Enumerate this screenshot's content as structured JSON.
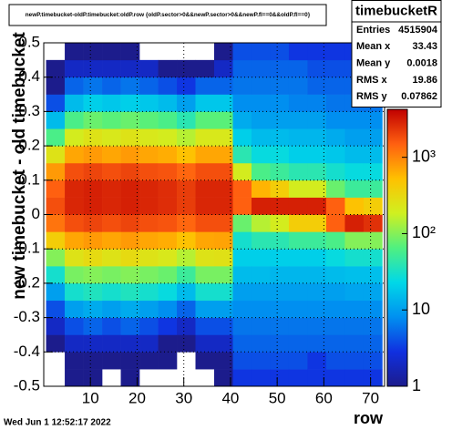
{
  "chart_data": {
    "type": "heatmap",
    "title": "newP.timebucket-oldP.timebucket:oldP.row {oldP.sector>0&&newP.sector>0&&newP.fl==0&&oldP.fl==0}",
    "x_label": "row",
    "y_label": "new timebucket - old timebucket",
    "date": "Wed Jun  1 12:52:17 2022",
    "stats": {
      "name": "timebucketR",
      "rows": [
        {
          "label": "Entries",
          "value": 4515904
        },
        {
          "label": "Mean x",
          "value": 33.43
        },
        {
          "label": "Mean y",
          "value": 0.0018
        },
        {
          "label": "RMS x",
          "value": 19.86
        },
        {
          "label": "RMS y",
          "value": 0.07862
        }
      ]
    },
    "xlim": [
      0,
      73
    ],
    "xticks": [
      10,
      20,
      30,
      40,
      50,
      60,
      70
    ],
    "ylim": [
      -0.5,
      0.5
    ],
    "yticks": [
      -0.5,
      -0.4,
      -0.3,
      -0.2,
      -0.1,
      0,
      0.1,
      0.2,
      0.3,
      0.4,
      0.5
    ],
    "zlim": [
      1,
      4250
    ],
    "zlog": true,
    "zticks": [
      1,
      10,
      {
        "value": 100,
        "label": "10²"
      },
      {
        "value": 1000,
        "label": "10³"
      }
    ],
    "grid": true,
    "palette": [
      "#1c1c8c",
      "#1030e0",
      "#0090f0",
      "#00d8e8",
      "#50f080",
      "#d0f020",
      "#ffc000",
      "#ff6010",
      "#c00000"
    ],
    "xbins": [
      0.5,
      4.5,
      8.5,
      12.5,
      16.5,
      20.5,
      24.5,
      28.5,
      32.5,
      36.5,
      40.5,
      44.5,
      48.5,
      52.5,
      56.5,
      60.5,
      64.5,
      68.5,
      72.5
    ],
    "ybins": [
      -0.5,
      -0.45,
      -0.4,
      -0.35,
      -0.3,
      -0.25,
      -0.2,
      -0.15,
      -0.1,
      -0.05,
      0,
      0.05,
      0.1,
      0.15,
      0.2,
      0.25,
      0.3,
      0.35,
      0.4,
      0.45,
      0.5
    ],
    "z": [
      [
        0,
        0,
        1,
        2,
        4,
        10,
        30,
        100,
        400,
        1200,
        1800,
        1500,
        800,
        250,
        60,
        15,
        4,
        1,
        1,
        0
      ],
      [
        1,
        1,
        2,
        4,
        10,
        30,
        90,
        250,
        700,
        1800,
        2800,
        2800,
        1800,
        700,
        200,
        60,
        15,
        5,
        2,
        1
      ],
      [
        1,
        1,
        2,
        5,
        12,
        35,
        100,
        300,
        800,
        2000,
        3000,
        3000,
        2000,
        800,
        250,
        80,
        20,
        6,
        2,
        1
      ],
      [
        0,
        1,
        2,
        4,
        10,
        30,
        90,
        250,
        700,
        1800,
        2800,
        2800,
        1800,
        700,
        220,
        70,
        18,
        5,
        2,
        1
      ],
      [
        1,
        1,
        2,
        5,
        12,
        35,
        100,
        300,
        800,
        2000,
        3000,
        3000,
        2000,
        800,
        250,
        80,
        20,
        6,
        2,
        1
      ],
      [
        0,
        1,
        2,
        4,
        10,
        30,
        90,
        250,
        700,
        1800,
        2800,
        2800,
        1800,
        700,
        220,
        70,
        18,
        5,
        2,
        0
      ],
      [
        0,
        1,
        1,
        3,
        8,
        25,
        80,
        220,
        650,
        1700,
        2600,
        2600,
        1700,
        650,
        200,
        60,
        15,
        4,
        1,
        0
      ],
      [
        0,
        0,
        1,
        2,
        5,
        15,
        50,
        150,
        500,
        1400,
        2200,
        2200,
        1400,
        500,
        150,
        40,
        10,
        3,
        1,
        0
      ],
      [
        0,
        1,
        2,
        4,
        10,
        30,
        90,
        250,
        700,
        1800,
        2800,
        2800,
        1800,
        700,
        220,
        70,
        18,
        5,
        1,
        0
      ],
      [
        1,
        1,
        2,
        4,
        10,
        30,
        90,
        260,
        720,
        1800,
        2800,
        2800,
        1800,
        700,
        220,
        70,
        18,
        5,
        2,
        1
      ],
      [
        3,
        4,
        5,
        6,
        8,
        10,
        15,
        20,
        30,
        80,
        1500,
        1500,
        200,
        40,
        20,
        12,
        8,
        6,
        5,
        4
      ],
      [
        3,
        4,
        5,
        6,
        8,
        10,
        15,
        20,
        40,
        150,
        3000,
        600,
        60,
        25,
        15,
        10,
        8,
        6,
        5,
        4
      ],
      [
        3,
        4,
        5,
        6,
        8,
        10,
        14,
        20,
        40,
        200,
        3000,
        400,
        50,
        25,
        15,
        10,
        8,
        6,
        5,
        4
      ],
      [
        3,
        4,
        5,
        6,
        8,
        10,
        14,
        20,
        50,
        400,
        3000,
        200,
        40,
        20,
        14,
        10,
        7,
        6,
        5,
        3
      ],
      [
        3,
        3,
        5,
        6,
        8,
        10,
        14,
        20,
        50,
        400,
        3000,
        200,
        40,
        20,
        14,
        10,
        7,
        5,
        4,
        3
      ],
      [
        3,
        4,
        5,
        6,
        8,
        10,
        15,
        25,
        60,
        1500,
        1500,
        80,
        30,
        18,
        12,
        8,
        6,
        5,
        4,
        3
      ],
      [
        3,
        4,
        5,
        6,
        8,
        11,
        16,
        30,
        100,
        3000,
        500,
        50,
        25,
        15,
        10,
        8,
        6,
        5,
        4,
        3
      ],
      [
        3,
        4,
        5,
        6,
        8,
        11,
        16,
        30,
        100,
        2500,
        400,
        50,
        25,
        15,
        10,
        8,
        6,
        5,
        4,
        3
      ]
    ]
  }
}
